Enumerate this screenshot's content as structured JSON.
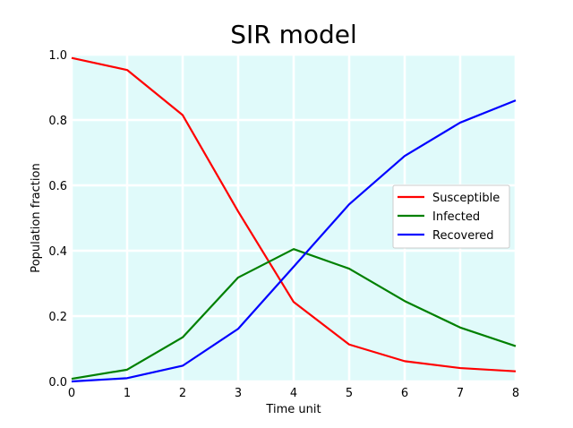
{
  "chart_data": {
    "type": "line",
    "title": "SIR model",
    "xlabel": "Time unit",
    "ylabel": "Population fraction",
    "xlim": [
      0,
      8
    ],
    "ylim": [
      0,
      1.0
    ],
    "x": [
      0,
      1,
      2,
      3,
      4,
      5,
      6,
      7,
      8
    ],
    "xticks": [
      "0",
      "1",
      "2",
      "3",
      "4",
      "5",
      "6",
      "7",
      "8"
    ],
    "yticks": [
      0.0,
      0.2,
      0.4,
      0.6,
      0.8,
      1.0
    ],
    "ytick_labels": [
      "0.0",
      "0.2",
      "0.4",
      "0.6",
      "0.8",
      "1.0"
    ],
    "grid": true,
    "background_color": "#e0fafa",
    "grid_color": "#ffffff",
    "legend_position": "center-right",
    "series": [
      {
        "name": "Susceptible",
        "color": "#ff0000",
        "values": [
          0.99,
          0.953,
          0.815,
          0.52,
          0.243,
          0.113,
          0.062,
          0.041,
          0.031
        ]
      },
      {
        "name": "Infected",
        "color": "#008000",
        "values": [
          0.008,
          0.036,
          0.135,
          0.318,
          0.405,
          0.345,
          0.246,
          0.165,
          0.108
        ]
      },
      {
        "name": "Recovered",
        "color": "#0000ff",
        "values": [
          0.0,
          0.01,
          0.048,
          0.161,
          0.351,
          0.542,
          0.69,
          0.792,
          0.86
        ]
      }
    ]
  }
}
